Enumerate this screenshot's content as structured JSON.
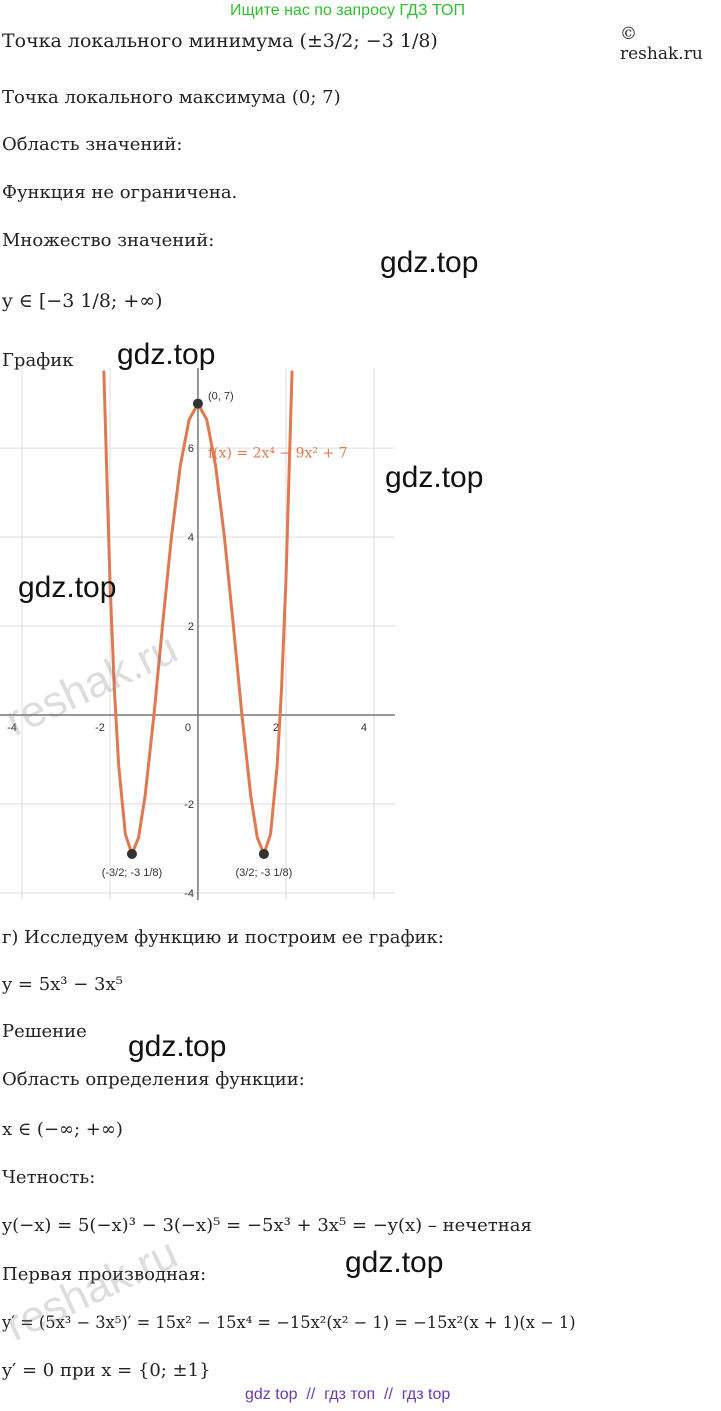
{
  "header": {
    "search_hint": "Ищите нас по запросу ГДЗ ТОП",
    "copyright": "© reshak.ru"
  },
  "lines": [
    "Точка локального минимума (±3/2; −3 1/8)",
    "Точка локального максимума (0; 7)",
    "Область значений:",
    "Функция не ограничена.",
    "Множество значений:",
    "y ∈ [−3 1/8; +∞)",
    "График",
    "г) Исследуем функцию и построим ее график:",
    "y = 5x³ − 3x⁵",
    "Решение",
    "Область определения функции:",
    "x ∈ (−∞; +∞)",
    "Четность:",
    "y(−x) = 5(−x)³ − 3(−x)⁵ = −5x³ + 3x⁵ = −y(x) – нечетная",
    "Первая производная:",
    "y′ = (5x³ − 3x⁵)′ = 15x² − 15x⁴ = −15x²(x² − 1) = −15x²(x + 1)(x − 1)",
    "y′ = 0 при x = {0; ±1}"
  ],
  "graph": {
    "xlim": [
      -4.5,
      4.48
    ],
    "ylim": [
      -4.16,
      7.8
    ],
    "xticks": [
      -4,
      -2,
      0,
      2,
      4
    ],
    "yticks": [
      -4,
      -2,
      2,
      4,
      6
    ],
    "grid": true,
    "color": "#e07850",
    "curve": {
      "x": [
        -2.14,
        -2,
        -1.9,
        -1.8,
        -1.65,
        -1.5,
        -1.35,
        -1.2,
        -1,
        -0.8,
        -0.6,
        -0.4,
        -0.2,
        0,
        0.2,
        0.4,
        0.6,
        0.8,
        1,
        1.2,
        1.35,
        1.5,
        1.65,
        1.8,
        1.9,
        2,
        2.14
      ],
      "y": [
        7.74,
        3,
        0.57,
        -1.16,
        -2.68,
        -3.125,
        -2.76,
        -1.81,
        0,
        2.06,
        4.02,
        5.61,
        6.64,
        7,
        6.64,
        5.61,
        4.02,
        2.06,
        0,
        -1.81,
        -2.76,
        -3.125,
        -2.68,
        -1.16,
        0.57,
        3,
        7.74
      ]
    },
    "points": [
      {
        "x": -1.5,
        "y": -3.125,
        "label": "(-3/2; -3  1/8)"
      },
      {
        "x": 0,
        "y": 7,
        "label": "(0, 7)"
      },
      {
        "x": 1.5,
        "y": -3.125,
        "label": "(3/2; -3  1/8)"
      }
    ],
    "function_label": "f(x) = 2x⁴ − 9x² + 7"
  },
  "watermarks": [
    "gdz.top",
    "gdz.top",
    "gdz.top",
    "gdz.top",
    "gdz.top",
    "gdz.top"
  ],
  "reshak_marks": [
    "reshak.ru",
    "reshak.ru"
  ],
  "footer": "gdz top  //  гдз топ  //  гдз top"
}
